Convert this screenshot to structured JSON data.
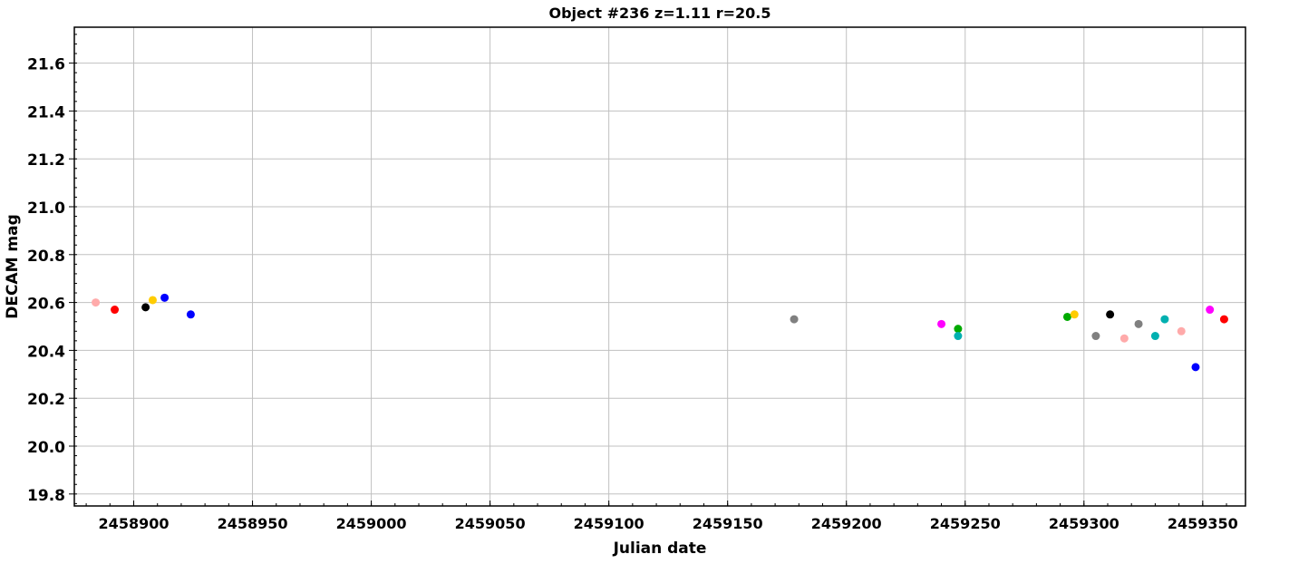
{
  "chart_data": {
    "type": "scatter",
    "title": "Object #236 z=1.11 r=20.5",
    "xlabel": "Julian date",
    "ylabel": "DECAM mag",
    "xlim": [
      2458875,
      2459368
    ],
    "ylim": [
      19.75,
      21.75
    ],
    "xticks": [
      2458900,
      2458950,
      2459000,
      2459050,
      2459100,
      2459150,
      2459200,
      2459250,
      2459300,
      2459350
    ],
    "yticks": [
      19.8,
      20.0,
      20.2,
      20.4,
      20.6,
      20.8,
      21.0,
      21.2,
      21.4,
      21.6
    ],
    "xminor_step": 10,
    "yminor_step": 0.04,
    "grid": true,
    "points": [
      {
        "x": 2458884,
        "y": 20.6,
        "color": "#ffaaaa"
      },
      {
        "x": 2458892,
        "y": 20.57,
        "color": "#ff0000"
      },
      {
        "x": 2458905,
        "y": 20.58,
        "color": "#000000"
      },
      {
        "x": 2458908,
        "y": 20.61,
        "color": "#ffcc00"
      },
      {
        "x": 2458913,
        "y": 20.62,
        "color": "#0000ff"
      },
      {
        "x": 2458924,
        "y": 20.55,
        "color": "#0000ff"
      },
      {
        "x": 2459178,
        "y": 20.53,
        "color": "#808080"
      },
      {
        "x": 2459240,
        "y": 20.51,
        "color": "#ff00ff"
      },
      {
        "x": 2459247,
        "y": 20.49,
        "color": "#00aa00"
      },
      {
        "x": 2459247,
        "y": 20.46,
        "color": "#00b0b0"
      },
      {
        "x": 2459293,
        "y": 20.54,
        "color": "#00aa00"
      },
      {
        "x": 2459296,
        "y": 20.55,
        "color": "#ffcc00"
      },
      {
        "x": 2459305,
        "y": 20.46,
        "color": "#808080"
      },
      {
        "x": 2459311,
        "y": 20.55,
        "color": "#000000"
      },
      {
        "x": 2459317,
        "y": 20.45,
        "color": "#ffaaaa"
      },
      {
        "x": 2459323,
        "y": 20.51,
        "color": "#808080"
      },
      {
        "x": 2459330,
        "y": 20.46,
        "color": "#00b0b0"
      },
      {
        "x": 2459334,
        "y": 20.53,
        "color": "#00b0b0"
      },
      {
        "x": 2459341,
        "y": 20.48,
        "color": "#ffaaaa"
      },
      {
        "x": 2459347,
        "y": 20.33,
        "color": "#0000ff"
      },
      {
        "x": 2459353,
        "y": 20.57,
        "color": "#ff00ff"
      },
      {
        "x": 2459359,
        "y": 20.53,
        "color": "#ff0000"
      }
    ]
  }
}
